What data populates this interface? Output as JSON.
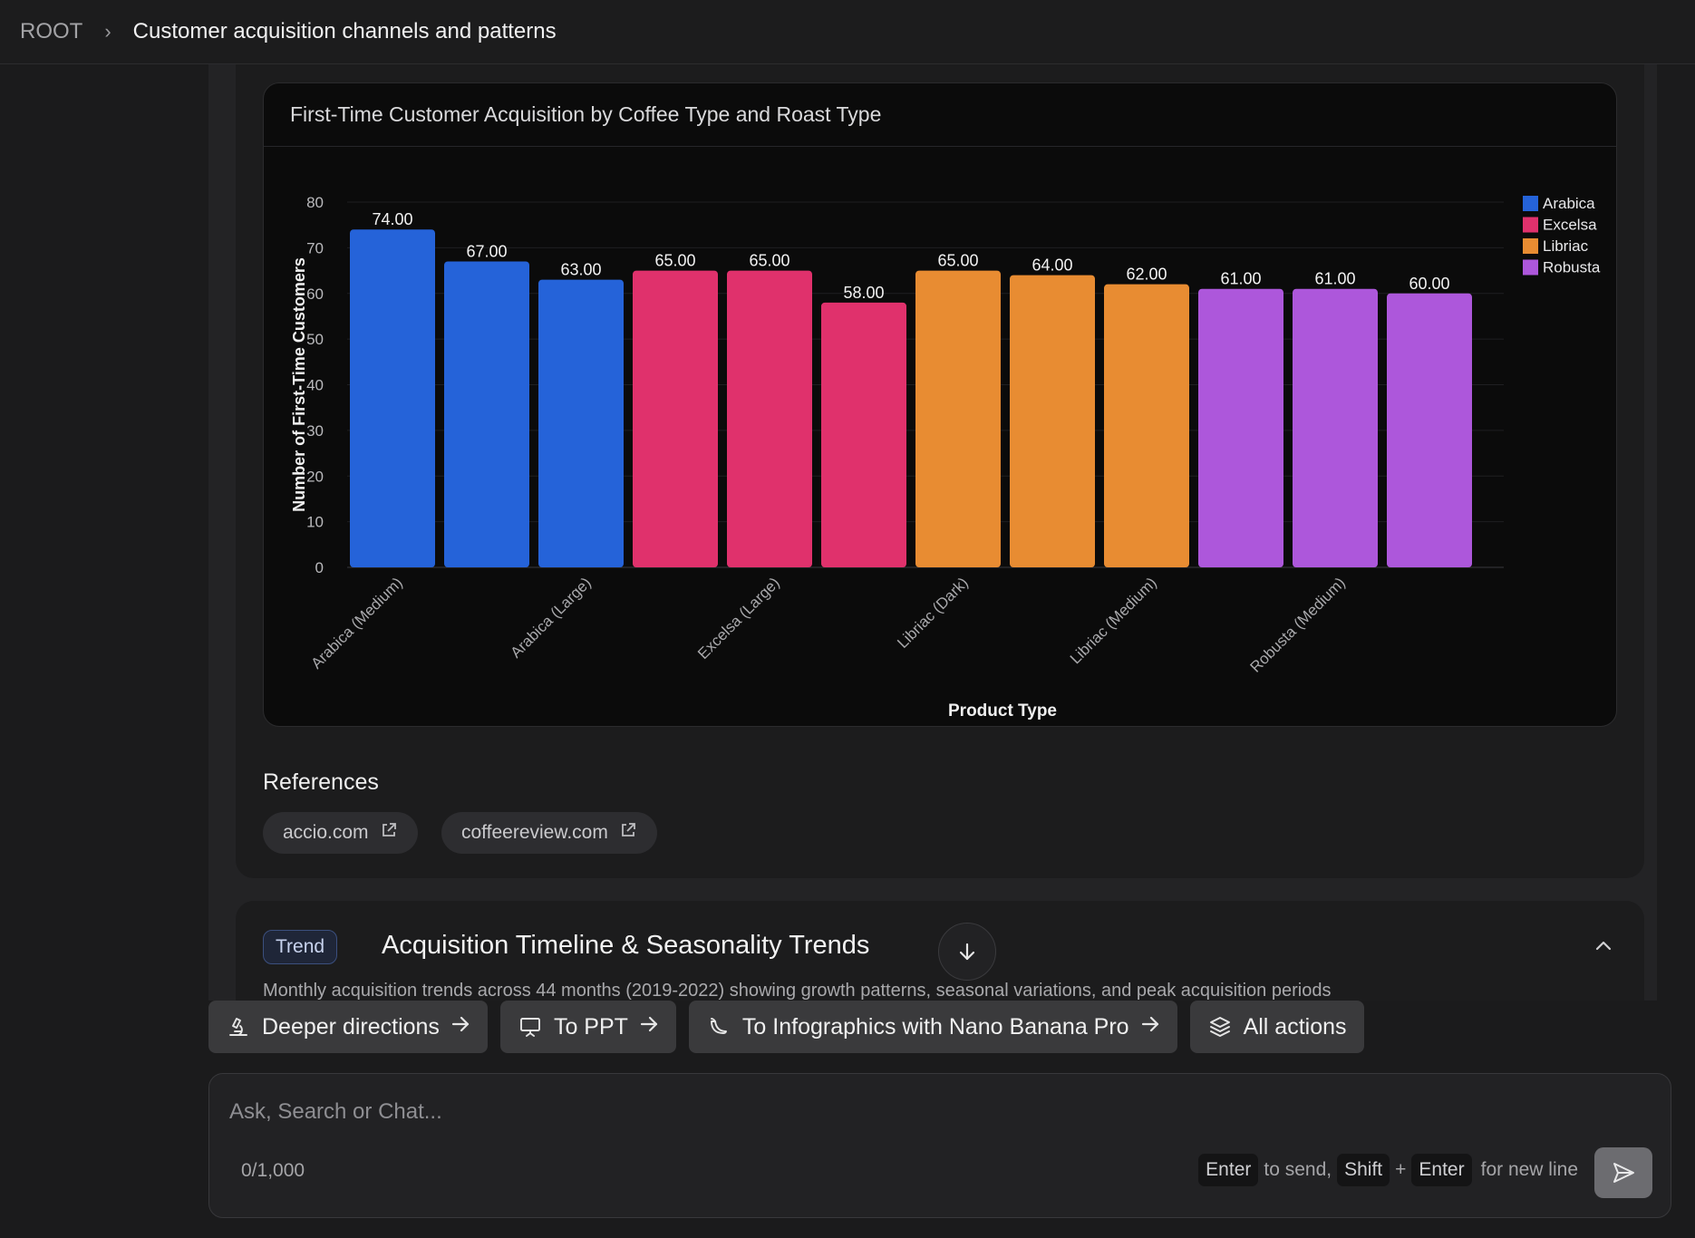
{
  "breadcrumb": {
    "root": "ROOT",
    "separator": "›",
    "title": "Customer acquisition channels and patterns"
  },
  "chart_card": {
    "title": "First-Time Customer Acquisition by Coffee Type and Roast Type"
  },
  "chart_data": {
    "type": "bar",
    "title": "First-Time Customer Acquisition by Coffee Type and Roast Type",
    "xlabel": "Product Type",
    "ylabel": "Number of First-Time Customers",
    "ylim": [
      0,
      80
    ],
    "yticks": [
      0,
      10,
      20,
      30,
      40,
      50,
      60,
      70,
      80
    ],
    "grid": true,
    "legend_position": "top-right",
    "value_label_format": "2 decimals",
    "bars": [
      {
        "series": "Arabica",
        "value": 74
      },
      {
        "series": "Arabica",
        "value": 67
      },
      {
        "series": "Arabica",
        "value": 63
      },
      {
        "series": "Excelsa",
        "value": 65
      },
      {
        "series": "Excelsa",
        "value": 65
      },
      {
        "series": "Excelsa",
        "value": 58
      },
      {
        "series": "Libriac",
        "value": 65
      },
      {
        "series": "Libriac",
        "value": 64
      },
      {
        "series": "Libriac",
        "value": 62
      },
      {
        "series": "Robusta",
        "value": 61
      },
      {
        "series": "Robusta",
        "value": 61
      },
      {
        "series": "Robusta",
        "value": 60
      }
    ],
    "visible_tick_labels": [
      {
        "bar_index": 0,
        "label": "Arabica (Medium)"
      },
      {
        "bar_index": 2,
        "label": "Arabica (Large)"
      },
      {
        "bar_index": 4,
        "label": "Excelsa (Large)"
      },
      {
        "bar_index": 6,
        "label": "Libriac (Dark)"
      },
      {
        "bar_index": 8,
        "label": "Libriac (Medium)"
      },
      {
        "bar_index": 10,
        "label": "Robusta (Medium)"
      }
    ],
    "series": [
      {
        "name": "Arabica",
        "color": "#2563d9"
      },
      {
        "name": "Excelsa",
        "color": "#e0316c"
      },
      {
        "name": "Libriac",
        "color": "#e88c32"
      },
      {
        "name": "Robusta",
        "color": "#ad57db"
      }
    ]
  },
  "references": {
    "title": "References",
    "items": [
      {
        "label": "accio.com"
      },
      {
        "label": "coffeereview.com"
      }
    ]
  },
  "trend_section": {
    "badge": "Trend",
    "title": "Acquisition Timeline & Seasonality Trends",
    "description": "Monthly acquisition trends across 44 months (2019-2022) showing growth patterns, seasonal variations, and peak acquisition periods"
  },
  "actions": [
    {
      "label": "Deeper directions",
      "icon": "microscope-icon"
    },
    {
      "label": "To PPT",
      "icon": "presentation-icon"
    },
    {
      "label": "To Infographics with Nano Banana Pro",
      "icon": "banana-icon"
    },
    {
      "label": "All actions",
      "icon": "layers-icon"
    }
  ],
  "chat": {
    "placeholder": "Ask, Search or Chat...",
    "char_count": "0/1,000",
    "hint_enter": "Enter",
    "hint_to_send": "to send,",
    "hint_shift": "Shift",
    "hint_plus": "+",
    "hint_enter2": "Enter",
    "hint_new_line": "for new line"
  }
}
